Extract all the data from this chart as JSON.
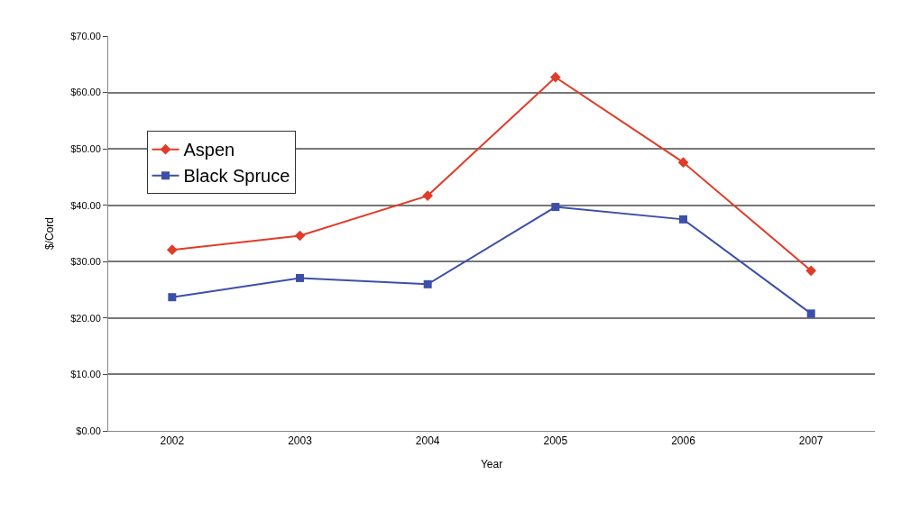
{
  "chart_data": {
    "type": "line",
    "xlabel": "Year",
    "ylabel": "$/Cord",
    "categories": [
      "2002",
      "2003",
      "2004",
      "2005",
      "2006",
      "2007"
    ],
    "series": [
      {
        "name": "Aspen",
        "color": "#e03c28",
        "marker": "diamond",
        "values": [
          32.1,
          34.6,
          41.7,
          62.7,
          47.6,
          28.4
        ]
      },
      {
        "name": "Black Spruce",
        "color": "#3c4fa8",
        "marker": "square",
        "values": [
          23.7,
          27.1,
          26.0,
          39.7,
          37.5,
          20.8
        ]
      }
    ],
    "ylim": [
      0,
      70
    ],
    "yticks": [
      {
        "value": 0,
        "label": "$0.00"
      },
      {
        "value": 10,
        "label": "$10.00"
      },
      {
        "value": 20,
        "label": "$20.00"
      },
      {
        "value": 30,
        "label": "$30.00"
      },
      {
        "value": 40,
        "label": "$40.00"
      },
      {
        "value": 50,
        "label": "$50.00"
      },
      {
        "value": 60,
        "label": "$60.00"
      },
      {
        "value": 70,
        "label": "$70.00"
      }
    ],
    "grid": "y",
    "legend": "left",
    "line_style": "solid"
  }
}
